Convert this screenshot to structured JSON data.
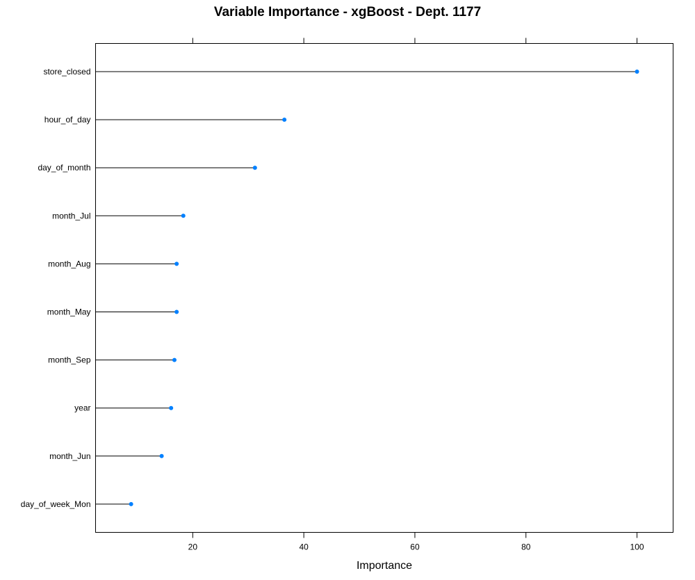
{
  "chart_data": {
    "type": "lollipop",
    "title": "Variable Importance - xgBoost - Dept. 1177",
    "xlabel": "Importance",
    "ylabel": "",
    "xlim": [
      2.5,
      106.5
    ],
    "xticks": [
      20,
      40,
      60,
      80,
      100
    ],
    "categories": [
      "store_closed",
      "hour_of_day",
      "day_of_month",
      "month_Jul",
      "month_Aug",
      "month_May",
      "month_Sep",
      "year",
      "month_Jun",
      "day_of_week_Mon"
    ],
    "values": [
      100,
      36.5,
      31.2,
      18.3,
      17.1,
      17.1,
      16.7,
      16.1,
      14.4,
      8.9
    ],
    "colors": {
      "point": "#0080ff",
      "stem": "#000000"
    },
    "grid": false
  }
}
